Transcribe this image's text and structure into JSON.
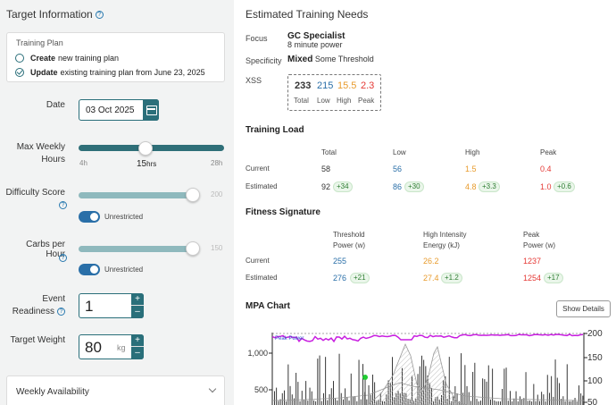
{
  "left": {
    "title": "Target Information",
    "plan": {
      "header": "Training Plan",
      "options": [
        {
          "bold": "Create",
          "text": "new training plan",
          "checked": false
        },
        {
          "bold": "Update",
          "text": "existing training plan from June 23, 2025",
          "checked": true
        }
      ]
    },
    "date": {
      "label": "Date",
      "value": "03 Oct 2025"
    },
    "hours": {
      "label_line1": "Max Weekly",
      "label_line2": "Hours",
      "min": "4h",
      "max": "28h",
      "value": "15",
      "unit": "hrs",
      "fraction": 0.4583
    },
    "difficulty": {
      "label": "Difficulty Score",
      "max": "200",
      "fraction": 1.0,
      "toggle_label": "Unrestricted"
    },
    "carbs": {
      "label": "Carbs per Hour",
      "max": "150",
      "fraction": 1.0,
      "toggle_label": "Unrestricted"
    },
    "readiness": {
      "label_line1": "Event",
      "label_line2": "Readiness",
      "value": "1"
    },
    "weight": {
      "label": "Target Weight",
      "value": "80",
      "unit": "kg"
    },
    "availability": "Weekly Availability",
    "spin_plus": "+",
    "spin_minus": "–"
  },
  "right": {
    "title": "Estimated Training Needs",
    "focus": {
      "label": "Focus",
      "value": "GC Specialist",
      "sub": "8 minute power"
    },
    "specificity": {
      "label": "Specificity",
      "value": "Mixed",
      "sub": "Some Threshold"
    },
    "xss": {
      "label": "XSS",
      "values": [
        {
          "v": "233",
          "l": "Total"
        },
        {
          "v": "215",
          "l": "Low"
        },
        {
          "v": "15.5",
          "l": "High"
        },
        {
          "v": "2.3",
          "l": "Peak"
        }
      ]
    },
    "load": {
      "title": "Training Load",
      "headers": [
        "Total",
        "Low",
        "High",
        "Peak"
      ],
      "rows": [
        {
          "name": "Current",
          "vals": [
            "58",
            "56",
            "1.5",
            "0.4"
          ],
          "deltas": [
            "",
            "",
            "",
            ""
          ]
        },
        {
          "name": "Estimated",
          "vals": [
            "92",
            "86",
            "4.8",
            "1.0"
          ],
          "deltas": [
            "+34",
            "+30",
            "+3.3",
            "+0.6"
          ]
        }
      ]
    },
    "fitness": {
      "title": "Fitness Signature",
      "headers": [
        {
          "l1": "Threshold",
          "l2": "Power (w)"
        },
        {
          "l1": "High Intensity",
          "l2": "Energy (kJ)"
        },
        {
          "l1": "Peak",
          "l2": "Power (w)"
        }
      ],
      "rows": [
        {
          "name": "Current",
          "vals": [
            "255",
            "26.2",
            "1237"
          ],
          "deltas": [
            "",
            "",
            ""
          ]
        },
        {
          "name": "Estimated",
          "vals": [
            "276",
            "27.4",
            "1254"
          ],
          "deltas": [
            "+21",
            "+1.2",
            "+17"
          ]
        }
      ]
    },
    "mpa": {
      "title": "MPA Chart",
      "button": "Show Details",
      "legend": "Peak Power",
      "y_left": [
        "1,000",
        "500"
      ],
      "y_right": [
        "200",
        "150",
        "100",
        "50"
      ]
    }
  },
  "colors": {
    "teal": "#2a6f7a",
    "track_main": "#2f6f78",
    "track_light": "#8fb9bd",
    "blue": "#2a6fa8",
    "purple": "#c81ee0"
  }
}
